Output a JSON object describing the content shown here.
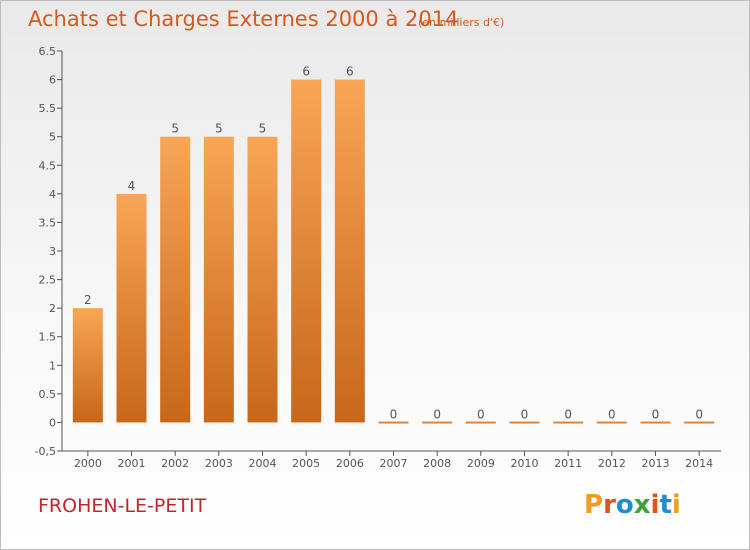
{
  "header": {
    "title": "Achats et Charges Externes 2000 à 2014",
    "subtitle": "(en milliers d'€)"
  },
  "footer": {
    "place": "FROHEN-LE-PETIT",
    "logo": "Proxiti"
  },
  "colors": {
    "title": "#d65a1e",
    "place": "#c4242b",
    "bar_light": "#f8a656",
    "bar_dark": "#c7671a",
    "axis": "#555555",
    "logo": [
      "#f39c1e",
      "#e84d1c",
      "#1d8fd1",
      "#3aa63a",
      "#e84d1c",
      "#1d8fd1",
      "#f39c1e"
    ]
  },
  "chart_data": {
    "type": "bar",
    "categories": [
      "2000",
      "2001",
      "2002",
      "2003",
      "2004",
      "2005",
      "2006",
      "2007",
      "2008",
      "2009",
      "2010",
      "2011",
      "2012",
      "2013",
      "2014"
    ],
    "values": [
      2,
      4,
      5,
      5,
      5,
      6,
      6,
      0,
      0,
      0,
      0,
      0,
      0,
      0,
      0
    ],
    "data_labels": [
      "2",
      "4",
      "5",
      "5",
      "5",
      "6",
      "6",
      "0",
      "0",
      "0",
      "0",
      "0",
      "0",
      "0",
      "0"
    ],
    "title": "Achats et Charges Externes 2000 à 2014",
    "subtitle": "(en milliers d'€)",
    "xlabel": "",
    "ylabel": "",
    "ylim": [
      -0.5,
      6.5
    ],
    "yticks": [
      -0.5,
      0,
      0.5,
      1,
      1.5,
      2,
      2.5,
      3,
      3.5,
      4,
      4.5,
      5,
      5.5,
      6,
      6.5
    ],
    "ytick_labels": [
      "-0,5",
      "0",
      "0.5",
      "1",
      "1.5",
      "2",
      "2.5",
      "3",
      "3.5",
      "4",
      "4.5",
      "5",
      "5.5",
      "6",
      "6.5"
    ],
    "grid": false,
    "legend": "none"
  }
}
